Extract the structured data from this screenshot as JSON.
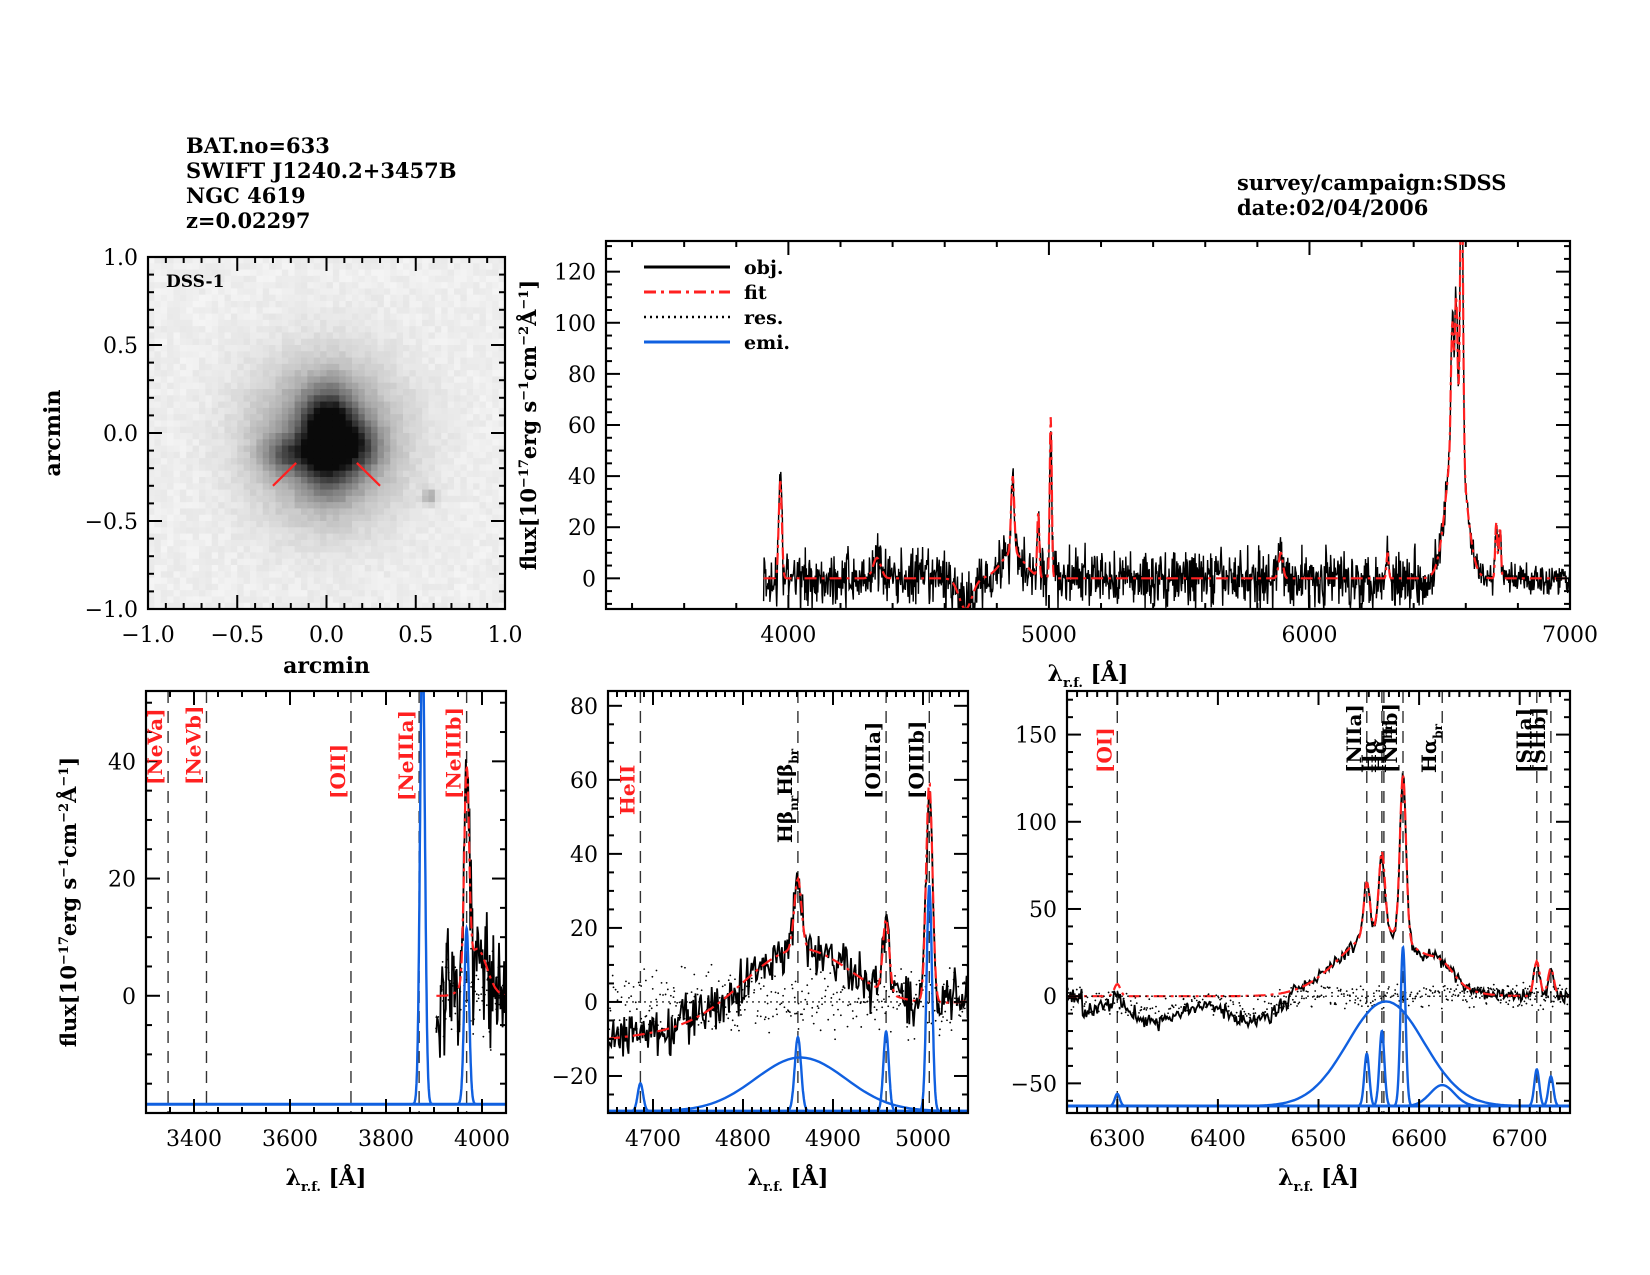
{
  "header_left": {
    "lines": [
      "BAT.no=633",
      "SWIFT J1240.2+3457B",
      "NGC 4619",
      "z=0.02297"
    ]
  },
  "header_right": {
    "lines": [
      "survey/campaign:SDSS",
      "date:02/04/2006"
    ]
  },
  "colors": {
    "obj": "#000000",
    "fit": "#ff2020",
    "res": "#000000",
    "emi": "#1060e0",
    "line_label_red": "#ff2020",
    "marker": "#ff2020"
  },
  "chart_data": [
    {
      "id": "image",
      "type": "heatmap",
      "title": "",
      "label": "DSS-1",
      "xlabel": "arcmin",
      "ylabel": "arcmin",
      "xlim": [
        -1.0,
        1.0
      ],
      "ylim": [
        -1.0,
        1.0
      ],
      "xticks": [
        "−1.0",
        "−0.5",
        "0.0",
        "0.5",
        "1.0"
      ],
      "yticks": [
        "−1.0",
        "−0.5",
        "0.0",
        "0.5",
        "1.0"
      ],
      "xtick_values": [
        -1.0,
        -0.5,
        0.0,
        0.5,
        1.0
      ],
      "ytick_values": [
        -1.0,
        -0.5,
        0.0,
        0.5,
        1.0
      ],
      "source_center": [
        0.0,
        0.0
      ],
      "markers": [
        {
          "from": [
            -0.3,
            -0.3
          ],
          "to": [
            -0.17,
            -0.17
          ]
        },
        {
          "from": [
            0.3,
            -0.3
          ],
          "to": [
            0.17,
            -0.17
          ]
        }
      ]
    },
    {
      "id": "full-spectrum",
      "type": "line",
      "xlabel": "λr.f. [Å]",
      "ylabel": "flux[10⁻¹⁷erg s⁻¹cm⁻²Å⁻¹]",
      "xlim": [
        3300,
        7000
      ],
      "ylim": [
        -12,
        132
      ],
      "xticks": [
        4000,
        5000,
        6000,
        7000
      ],
      "yticks": [
        0,
        20,
        40,
        60,
        80,
        100,
        120
      ],
      "legend": {
        "position": "top-left",
        "entries": [
          {
            "name": "obj.",
            "style": "solid",
            "color": "#000000"
          },
          {
            "name": "fit",
            "style": "dash-dot",
            "color": "#ff2020"
          },
          {
            "name": "res.",
            "style": "dotted",
            "color": "#000000"
          },
          {
            "name": "emi.",
            "style": "solid",
            "color": "#1060e0"
          }
        ]
      },
      "data_range": [
        3905,
        7000
      ],
      "continuum": 0,
      "features": [
        {
          "center": 3969,
          "peak": 38,
          "sigma": 6
        },
        {
          "center": 4340,
          "peak": 8,
          "sigma": 15
        },
        {
          "center": 4861,
          "peak": 30,
          "sigma": 6
        },
        {
          "center": 4861,
          "peak": 10,
          "sigma": 45
        },
        {
          "center": 4959,
          "peak": 25,
          "sigma": 4
        },
        {
          "center": 5007,
          "peak": 63,
          "sigma": 4
        },
        {
          "center": 5890,
          "peak": 10,
          "sigma": 8
        },
        {
          "center": 6300,
          "peak": 10,
          "sigma": 4
        },
        {
          "center": 6563,
          "peak": 60,
          "sigma": 35
        },
        {
          "center": 6548,
          "peak": 45,
          "sigma": 5
        },
        {
          "center": 6563,
          "peak": 50,
          "sigma": 5
        },
        {
          "center": 6584,
          "peak": 130,
          "sigma": 5
        },
        {
          "center": 6717,
          "peak": 22,
          "sigma": 4
        },
        {
          "center": 6731,
          "peak": 20,
          "sigma": 4
        }
      ],
      "dip": {
        "center": 4680,
        "depth": -12,
        "sigma": 25
      },
      "noise": 8
    },
    {
      "id": "zoom-neon-oxygen",
      "type": "line",
      "xlabel": "λr.f. [Å]",
      "ylabel": "flux[10⁻¹⁷erg s⁻¹cm⁻²Å⁻¹]",
      "xlim": [
        3300,
        4050
      ],
      "ylim": [
        -20,
        52
      ],
      "xticks": [
        3400,
        3600,
        3800,
        4000
      ],
      "yticks": [
        0,
        20,
        40
      ],
      "emi_baseline": -18.5,
      "data_range": [
        3905,
        4050
      ],
      "lines": [
        {
          "label": "[NeVa]",
          "wavelength": 3346,
          "color": "red"
        },
        {
          "label": "[NeVb]",
          "wavelength": 3426,
          "color": "red"
        },
        {
          "label": "[OII]",
          "wavelength": 3727,
          "color": "red"
        },
        {
          "label": "[NeIIIa]",
          "wavelength": 3869,
          "color": "red"
        },
        {
          "label": "[NeIIIb]",
          "wavelength": 3968,
          "color": "red"
        }
      ],
      "emission_components": [
        {
          "center": 3876,
          "amp": 80,
          "sigma": 5
        },
        {
          "center": 3968,
          "amp": 30,
          "sigma": 5
        }
      ],
      "fit_peaks": [
        {
          "center": 3968,
          "peak": 35,
          "sigma": 5
        }
      ],
      "noise": 8
    },
    {
      "id": "zoom-hbeta-oiii",
      "type": "line",
      "xlabel": "λr.f. [Å]",
      "ylabel": "",
      "xlim": [
        4650,
        5050
      ],
      "ylim": [
        -30,
        84
      ],
      "xticks": [
        4700,
        4800,
        4900,
        5000
      ],
      "yticks": [
        -20,
        0,
        20,
        40,
        60,
        80
      ],
      "emi_baseline": -29.5,
      "data_range": [
        4650,
        5050
      ],
      "lines": [
        {
          "label": "HeII",
          "wavelength": 4686,
          "color": "red"
        },
        {
          "label": "Hβnr Hβbr",
          "wavelength": 4861,
          "color": "black"
        },
        {
          "label": "[OIIIa]",
          "wavelength": 4959,
          "color": "black"
        },
        {
          "label": "[OIIIb]",
          "wavelength": 5007,
          "color": "black"
        }
      ],
      "emission_components": [
        {
          "center": 4686,
          "amp": 7.5,
          "sigma": 3
        },
        {
          "center": 4861,
          "amp": 20,
          "sigma": 3.5
        },
        {
          "center": 4864,
          "amp": 14.5,
          "sigma": 50
        },
        {
          "center": 4959,
          "amp": 21.5,
          "sigma": 3
        },
        {
          "center": 5007,
          "amp": 61,
          "sigma": 3
        }
      ],
      "fit_peaks": [
        {
          "center": 4861,
          "peak": 19,
          "sigma": 4
        },
        {
          "center": 4959,
          "peak": 20,
          "sigma": 3.5
        },
        {
          "center": 5007,
          "peak": 60,
          "sigma": 3.5
        }
      ],
      "noise": 5
    },
    {
      "id": "zoom-halpha-nii-sii",
      "type": "line",
      "xlabel": "λr.f. [Å]",
      "ylabel": "",
      "xlim": [
        6250,
        6750
      ],
      "ylim": [
        -67,
        175
      ],
      "xticks": [
        6300,
        6400,
        6500,
        6600,
        6700
      ],
      "yticks": [
        -50,
        0,
        50,
        100,
        150
      ],
      "emi_baseline": -63,
      "data_range": [
        6250,
        6750
      ],
      "lines": [
        {
          "label": "[OI]",
          "wavelength": 6300,
          "color": "red"
        },
        {
          "label": "[NIIa]",
          "wavelength": 6548,
          "color": "black"
        },
        {
          "label": "Hα",
          "wavelength": 6563,
          "color": "black"
        },
        {
          "label": "Hαbr",
          "wavelength": 6565,
          "color": "black"
        },
        {
          "label": "[NIIb]",
          "wavelength": 6584,
          "color": "black"
        },
        {
          "label": "Hαbr",
          "wavelength": 6623,
          "color": "black"
        },
        {
          "label": "[SIIa]",
          "wavelength": 6717,
          "color": "black"
        },
        {
          "label": "[SIIb]",
          "wavelength": 6731,
          "color": "black"
        }
      ],
      "emission_components": [
        {
          "center": 6300,
          "amp": 7,
          "sigma": 2.5
        },
        {
          "center": 6567,
          "amp": 60,
          "sigma": 38
        },
        {
          "center": 6548,
          "amp": 30,
          "sigma": 2.5
        },
        {
          "center": 6563,
          "amp": 43,
          "sigma": 2.5
        },
        {
          "center": 6584,
          "amp": 91,
          "sigma": 2.5
        },
        {
          "center": 6623,
          "amp": 12,
          "sigma": 12
        },
        {
          "center": 6717,
          "amp": 21,
          "sigma": 2.5
        },
        {
          "center": 6731,
          "amp": 17,
          "sigma": 2.5
        }
      ],
      "fit_peaks": [
        {
          "center": 6300,
          "peak": 7,
          "sigma": 3
        },
        {
          "center": 6563,
          "peak": 38,
          "sigma": 40
        },
        {
          "center": 6548,
          "peak": 30,
          "sigma": 3
        },
        {
          "center": 6563,
          "peak": 45,
          "sigma": 3
        },
        {
          "center": 6584,
          "peak": 95,
          "sigma": 3
        },
        {
          "center": 6623,
          "peak": 8,
          "sigma": 12
        },
        {
          "center": 6717,
          "peak": 20,
          "sigma": 3
        },
        {
          "center": 6731,
          "peak": 16,
          "sigma": 3
        }
      ],
      "obj_offset_band": [
        6300,
        6470,
        -10
      ],
      "noise": 3
    }
  ]
}
